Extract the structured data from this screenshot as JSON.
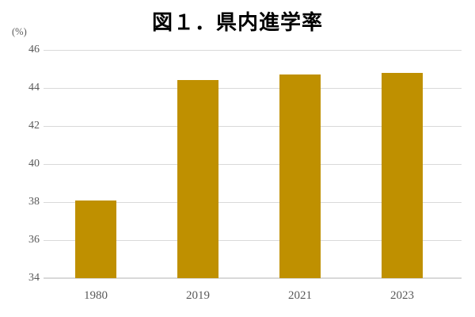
{
  "figure": {
    "title": "図１．県内進学率",
    "unit_label": "(%)"
  },
  "chart_data": {
    "type": "bar",
    "title": "図１．県内進学率",
    "ylabel": "(%)",
    "xlabel": "",
    "categories": [
      "1980",
      "2019",
      "2021",
      "2023"
    ],
    "values": [
      38.1,
      44.4,
      44.7,
      44.8
    ],
    "ylim": [
      34,
      46
    ],
    "yticks": [
      34,
      36,
      38,
      40,
      42,
      44,
      46
    ],
    "grid": true,
    "legend": "none",
    "colors": {
      "bar": "#bf9000",
      "gridline": "#d9d9d9",
      "axis_line": "#d9d9d9",
      "tick_label": "#595959",
      "title": "#000000",
      "background": "#ffffff"
    }
  }
}
